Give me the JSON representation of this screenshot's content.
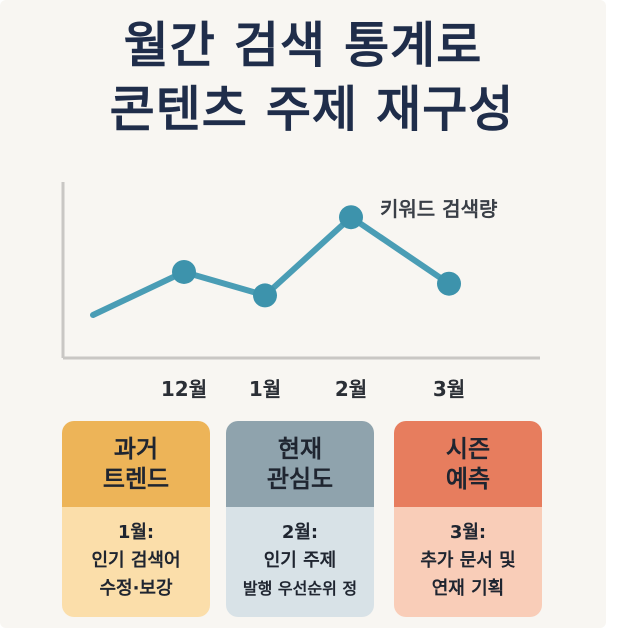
{
  "title": {
    "line1": "월간 검색 통계로",
    "line2": "콘텐츠 주제 재구성"
  },
  "chart_data": {
    "type": "line",
    "categories": [
      "12월",
      "1월",
      "2월",
      "3월"
    ],
    "series": [
      {
        "name": "키워드 검색량",
        "values": [
          3.2,
          2.6,
          4.6,
          2.9
        ]
      }
    ],
    "start_value": 2.1,
    "ylim": [
      1.0,
      5.5
    ],
    "grid": false,
    "legend": "top-right",
    "line_color": "#4a9db5",
    "point_color": "#3d93ac",
    "axis_color": "#c9c7c4"
  },
  "cards": [
    {
      "head": [
        "과거",
        "트렌드"
      ],
      "body": [
        "1월:",
        "인기 검색어",
        "수정·보강"
      ],
      "head_color": "#edb458",
      "body_color": "#fbdeaa"
    },
    {
      "head": [
        "현재",
        "관심도"
      ],
      "body": [
        "2월:",
        "인기 주제",
        "발행 우선순위 정"
      ],
      "head_color": "#8fa3ad",
      "body_color": "#d8e2e7"
    },
    {
      "head": [
        "시즌",
        "예측"
      ],
      "body": [
        "3월:",
        "추가 문서 및",
        "연재 기획"
      ],
      "head_color": "#e77d5e",
      "body_color": "#f9cdb8"
    }
  ]
}
